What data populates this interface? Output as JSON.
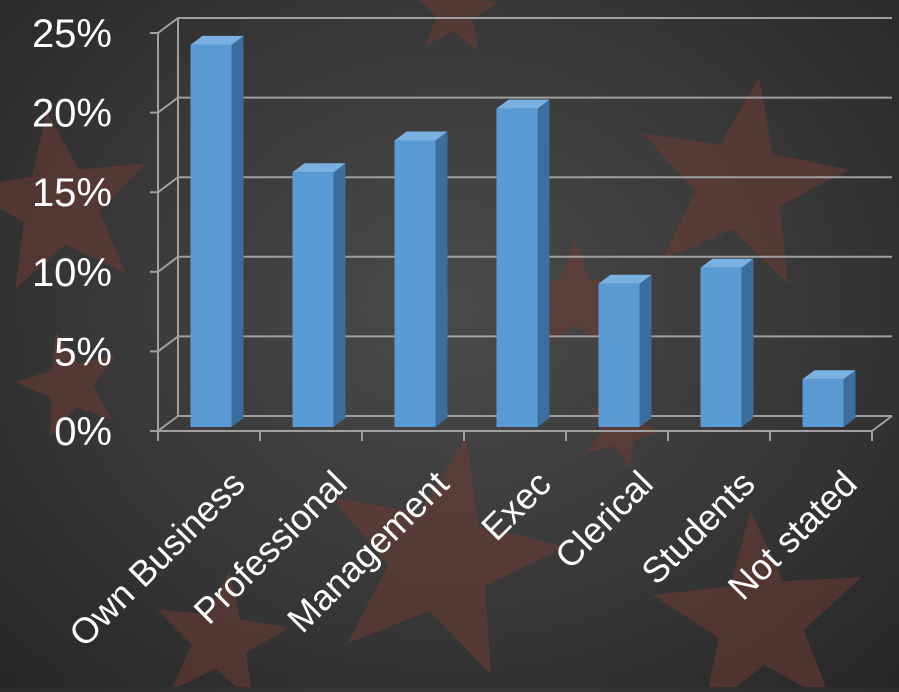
{
  "colors": {
    "background": "#3a3a3a",
    "bar_front": "#5b9bd5",
    "bar_side": "#3d6d9c",
    "bar_top": "#7ab1e3",
    "gridline": "#a0a0a0",
    "text": "#ffffff",
    "star": "#6e3a31"
  },
  "chart_data": {
    "type": "bar",
    "style": "3d-column",
    "categories": [
      "Own Business",
      "Professional",
      "Management",
      "Exec",
      "Clerical",
      "Students",
      "Not stated"
    ],
    "values": [
      24,
      16,
      18,
      20,
      9,
      10,
      3
    ],
    "unit": "%",
    "ylim": [
      0,
      25
    ],
    "y_ticks": [
      "0%",
      "5%",
      "10%",
      "15%",
      "20%",
      "25%"
    ],
    "grid": true,
    "legend": "none",
    "title": "",
    "xlabel": "",
    "ylabel": ""
  }
}
